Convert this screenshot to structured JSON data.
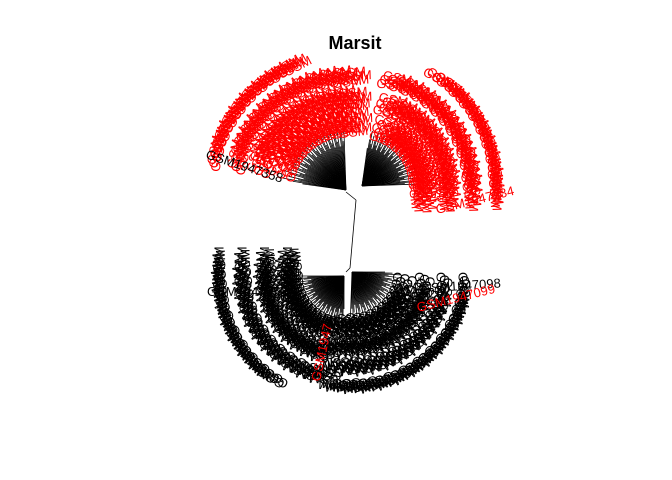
{
  "title": "Marsit",
  "colors": {
    "background": "#ffffff",
    "branch": "#000000",
    "group_red": "#ff0000",
    "group_black": "#000000"
  },
  "labels": {
    "upper_left_black": "GSM1947358",
    "upper_right_red": "GSM1947234",
    "lower_left_black": "GSM1947352",
    "lower_right_black": "GSM1947098",
    "lower_right_red": "GSM1947099",
    "lower_center_red": "GSM1947"
  },
  "chart_data": {
    "type": "dendrogram",
    "layout": "unrooted fan",
    "title": "Marsit",
    "groups": [
      {
        "color": "#ff0000",
        "clusters": [
          "upper-left",
          "upper-right"
        ]
      },
      {
        "color": "#000000",
        "clusters": [
          "lower-left",
          "lower-right"
        ]
      }
    ],
    "legible_tip_labels": [
      "GSM1947358",
      "GSM1947234",
      "GSM1947352",
      "GSM1947098",
      "GSM1947099"
    ]
  }
}
